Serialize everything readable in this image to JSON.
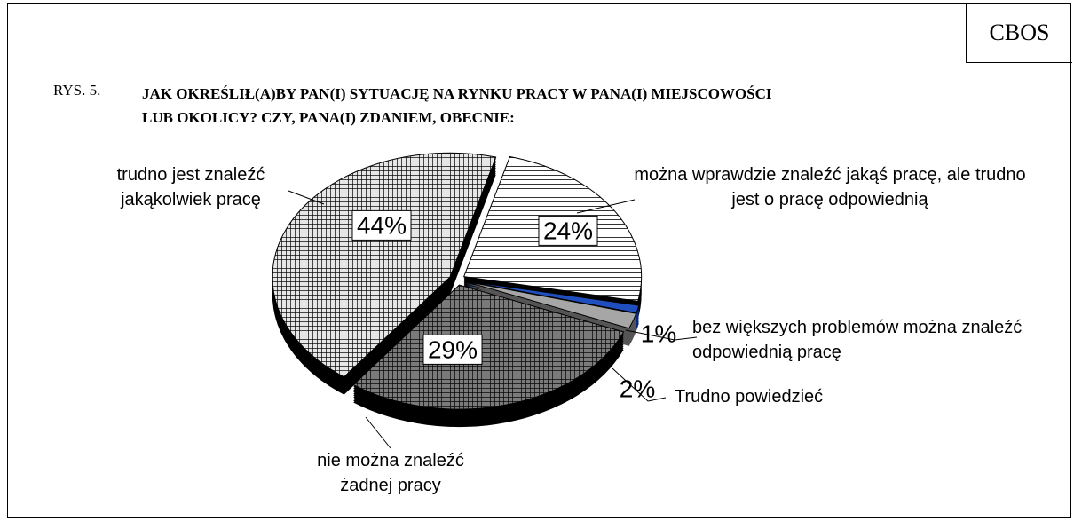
{
  "chart_data": {
    "type": "pie",
    "source": "CBOS",
    "figure_label": "RYS. 5.",
    "title": "JAK OKREŚLIŁ(A)BY PAN(I) SYTUACJĘ NA RYNKU PRACY W PANA(I) MIEJSCOWOŚCI LUB OKOLICY? CZY, PANA(I) ZDANIEM, OBECNIE:",
    "categories": [
      "można wprawdzie znaleźć jakąś pracę, ale trudno jest o pracę odpowiednią",
      "bez większych problemów można znaleźć odpowiednią pracę",
      "Trudno powiedzieć",
      "nie można znaleźć żadnej pracy",
      "trudno jest znaleźć jakąkolwiek pracę"
    ],
    "values": [
      24,
      1,
      2,
      29,
      44
    ],
    "value_labels": [
      "24%",
      "1%",
      "2%",
      "29%",
      "44%"
    ],
    "colors": [
      "#ffffff",
      "#1f4fbf",
      "#a6a6a6",
      "#7a7a7a",
      "#e6e6e6"
    ],
    "patterns": [
      "horizontal",
      "none",
      "none",
      "crosshatch",
      "crosshatch"
    ]
  }
}
